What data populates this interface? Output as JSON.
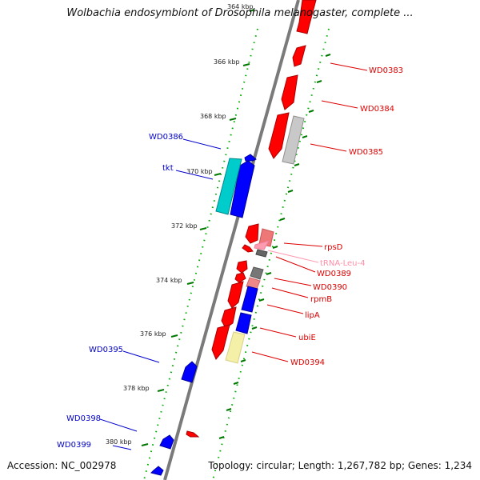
{
  "title": "Wolbachia endosymbiont of Drosophila melanogaster, complete ...",
  "accession": "Accession: NC_002978",
  "topology": "Topology: circular; Length: 1,267,782 bp; Genes: 1,234",
  "colors": {
    "backbone": "#808080",
    "forward_gene": "#ff0000",
    "reverse_gene": "#0000ff",
    "tick": "#007700",
    "trna": "#ff9bb0"
  },
  "ticks": [
    {
      "label": "364 kbp"
    },
    {
      "label": "366 kbp"
    },
    {
      "label": "368 kbp"
    },
    {
      "label": "370 kbp"
    },
    {
      "label": "372 kbp"
    },
    {
      "label": "374 kbp"
    },
    {
      "label": "376 kbp"
    },
    {
      "label": "378 kbp"
    },
    {
      "label": "380 kbp"
    }
  ],
  "labels_left": [
    {
      "text": "WD0386",
      "color": "#0000cc"
    },
    {
      "text": "tkt",
      "color": "#0000cc"
    },
    {
      "text": "WD0395",
      "color": "#0000cc"
    },
    {
      "text": "WD0398",
      "color": "#0000cc"
    },
    {
      "text": "WD0399",
      "color": "#0000cc"
    }
  ],
  "labels_right": [
    {
      "text": "WD0383",
      "color": "#dd0000"
    },
    {
      "text": "WD0384",
      "color": "#dd0000"
    },
    {
      "text": "WD0385",
      "color": "#dd0000"
    },
    {
      "text": "rpsD",
      "color": "#dd0000"
    },
    {
      "text": "tRNA-Leu-4",
      "color": "#ff8fa8"
    },
    {
      "text": "WD0389",
      "color": "#dd0000"
    },
    {
      "text": "WD0390",
      "color": "#dd0000"
    },
    {
      "text": "rpmB",
      "color": "#dd0000"
    },
    {
      "text": "lipA",
      "color": "#dd0000"
    },
    {
      "text": "ubiE",
      "color": "#dd0000"
    },
    {
      "text": "WD0394",
      "color": "#dd0000"
    }
  ]
}
